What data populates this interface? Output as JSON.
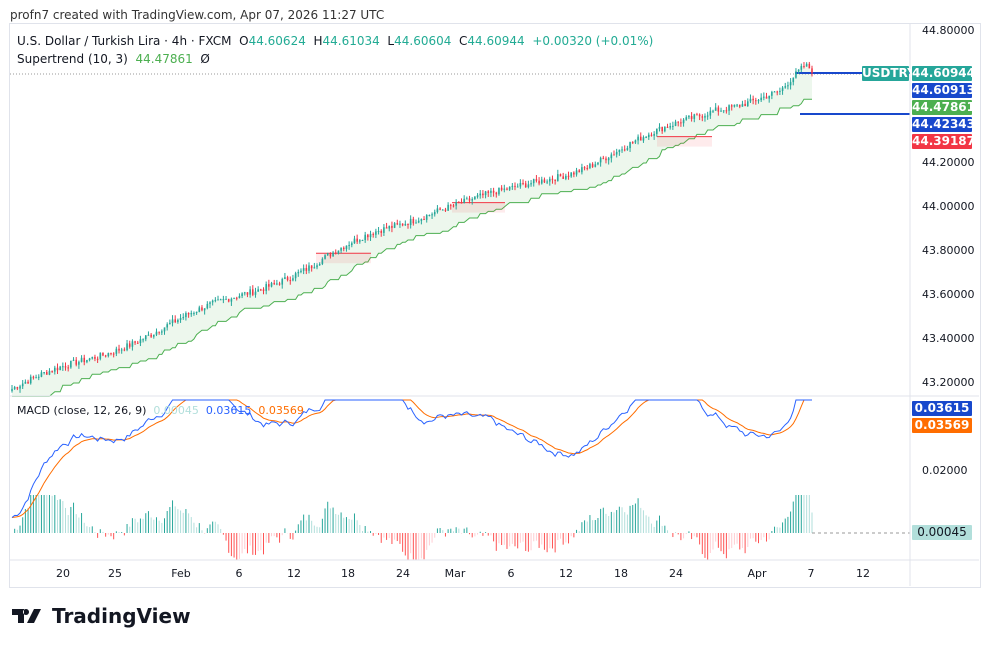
{
  "credit": "profn7 created with TradingView.com, Apr 07, 2026 11:27 UTC",
  "symbol_title": "U.S. Dollar / Turkish Lira · 4h · FXCM",
  "ohlc": {
    "o_label": "O",
    "o": "44.60624",
    "h_label": "H",
    "h": "44.61034",
    "l_label": "L",
    "l": "44.60604",
    "c_label": "C",
    "c": "44.60944",
    "change": "+0.00320 (+0.01%)"
  },
  "supertrend": {
    "label": "Supertrend (10, 3)",
    "value": "44.47861",
    "extra": "Ø"
  },
  "macd": {
    "label": "MACD (close, 12, 26, 9)",
    "hist": "0.00045",
    "macd": "0.03615",
    "signal": "0.03569"
  },
  "price_tags": [
    {
      "text": "USDTRY",
      "color": "#26a69a"
    },
    {
      "text": "44.60944",
      "color": "#26a69a"
    },
    {
      "text": "44.60913",
      "color": "#1848cc"
    },
    {
      "text": "44.47861",
      "color": "#4caf50"
    },
    {
      "text": "44.42343",
      "color": "#1848cc"
    },
    {
      "text": "44.39187",
      "color": "#f23645"
    }
  ],
  "macd_tags": [
    {
      "text": "0.03615",
      "color": "#1848cc"
    },
    {
      "text": "0.03569",
      "color": "#ff6d00"
    },
    {
      "text": "0.00045",
      "color": "#b2dfdb"
    }
  ],
  "colors": {
    "up": "#26a69a",
    "down": "#f23645",
    "supertrend_up": "#4caf50",
    "macd": "#2962ff",
    "signal": "#ff6d00"
  },
  "chart_data": {
    "type": "candlestick",
    "price_axis": {
      "ticks": [
        "44.80000",
        "44.20000",
        "44.00000",
        "43.80000",
        "43.60000",
        "43.40000",
        "43.20000"
      ],
      "range": [
        43.15,
        44.82
      ]
    },
    "macd_axis": {
      "ticks": [
        "0.02000"
      ]
    },
    "x_ticks": [
      "20",
      "25",
      "Feb",
      "6",
      "12",
      "18",
      "24",
      "Mar",
      "6",
      "12",
      "18",
      "24",
      "Apr",
      "7",
      "12"
    ],
    "trend_anchors": [
      [
        "Jan 16",
        43.17
      ],
      [
        "Jan 24",
        43.33
      ],
      [
        "Feb 6",
        43.6
      ],
      [
        "Feb 13",
        43.73
      ],
      [
        "Feb 19",
        43.88
      ],
      [
        "Feb 26",
        44.0
      ],
      [
        "Mar 6",
        44.07
      ],
      [
        "Mar 13",
        44.18
      ],
      [
        "Mar 18",
        44.3
      ],
      [
        "Mar 26",
        44.45
      ],
      [
        "Apr 3",
        44.52
      ],
      [
        "Apr 6",
        44.63
      ],
      [
        "Apr 7",
        44.609
      ]
    ],
    "last": {
      "open": 44.60624,
      "high": 44.61034,
      "low": 44.60604,
      "close": 44.60944
    }
  },
  "logo": "TradingView"
}
